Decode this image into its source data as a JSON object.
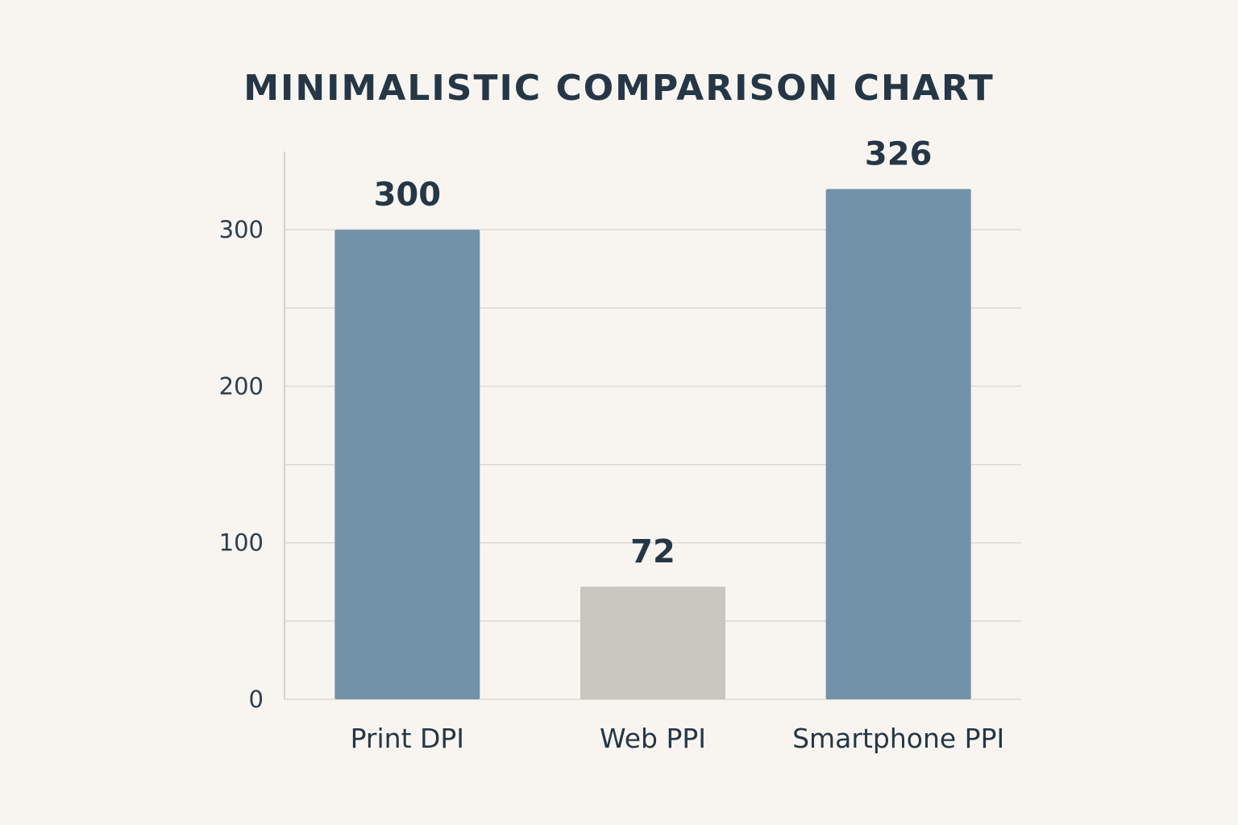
{
  "chart_data": {
    "type": "bar",
    "title": "MINIMALISTIC COMPARISON CHART",
    "categories": [
      "Print DPI",
      "Web PPI",
      "Smartphone PPI"
    ],
    "values": [
      300,
      72,
      326
    ],
    "data_labels": [
      "300",
      "72",
      "326"
    ],
    "yticks": [
      0,
      100,
      200,
      300
    ],
    "ytick_labels": [
      "0",
      "100",
      "200",
      "300"
    ],
    "ylim": [
      0,
      350
    ],
    "grid": true,
    "xlabel": "",
    "ylabel": "",
    "colors": [
      "#7292a9",
      "#c9c5bf",
      "#7292a9"
    ]
  }
}
